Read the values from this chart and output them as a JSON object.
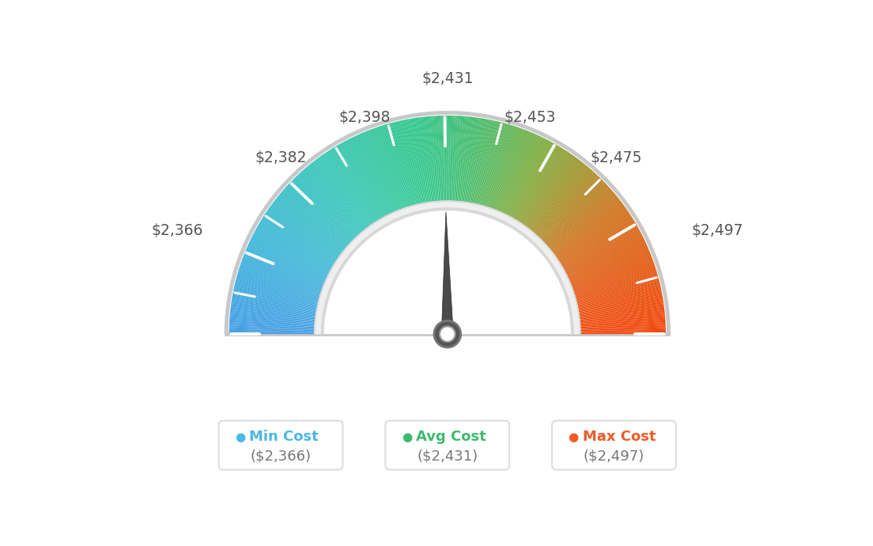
{
  "min_val": 2366,
  "avg_val": 2431,
  "max_val": 2497,
  "legend": [
    {
      "label": "Min Cost",
      "value": "($2,366)",
      "color": "#4ab8e8"
    },
    {
      "label": "Avg Cost",
      "value": "($2,431)",
      "color": "#3dba6e"
    },
    {
      "label": "Max Cost",
      "value": "($2,497)",
      "color": "#f05a28"
    }
  ],
  "background_color": "#ffffff",
  "label_texts": {
    "2366": "$2,366",
    "2382": "$2,382",
    "2398": "$2,398",
    "2431": "$2,431",
    "2453": "$2,453",
    "2475": "$2,475",
    "2497": "$2,497"
  },
  "color_stops": [
    [
      0.0,
      [
        0.27,
        0.62,
        0.9
      ]
    ],
    [
      0.15,
      [
        0.25,
        0.72,
        0.85
      ]
    ],
    [
      0.3,
      [
        0.22,
        0.78,
        0.72
      ]
    ],
    [
      0.45,
      [
        0.2,
        0.78,
        0.55
      ]
    ],
    [
      0.5,
      [
        0.24,
        0.76,
        0.5
      ]
    ],
    [
      0.55,
      [
        0.3,
        0.74,
        0.42
      ]
    ],
    [
      0.65,
      [
        0.5,
        0.68,
        0.25
      ]
    ],
    [
      0.72,
      [
        0.65,
        0.58,
        0.18
      ]
    ],
    [
      0.8,
      [
        0.82,
        0.45,
        0.12
      ]
    ],
    [
      0.9,
      [
        0.9,
        0.35,
        0.08
      ]
    ],
    [
      1.0,
      [
        0.95,
        0.28,
        0.05
      ]
    ]
  ]
}
